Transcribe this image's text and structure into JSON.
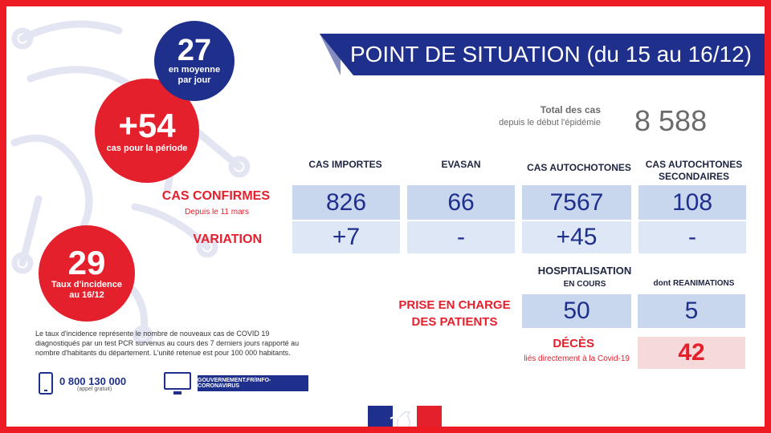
{
  "title": "POINT DE SITUATION (du 15 au 16/12)",
  "bubbles": {
    "average": {
      "value": "27",
      "label_line1": "en moyenne",
      "label_line2": "par jour"
    },
    "period": {
      "value": "+54",
      "label": "cas pour la période"
    },
    "incidence": {
      "value": "29",
      "label_line1": "Taux d'incidence",
      "label_line2": "au 16/12"
    }
  },
  "total": {
    "label": "Total des cas",
    "sublabel": "depuis le début  l'épidémie",
    "value": "8 588"
  },
  "columns": {
    "importes": "CAS IMPORTES",
    "evasan": "EVASAN",
    "autochtones": "CAS AUTOCHOTONES",
    "secondaires_line1": "CAS AUTOCHTONES",
    "secondaires_line2": "SECONDAIRES"
  },
  "rows": {
    "confirmes_label": "CAS CONFIRMES",
    "confirmes_sublabel": "Depuis le 11 mars",
    "variation_label": "VARIATION"
  },
  "confirmes": {
    "importes": "826",
    "evasan": "66",
    "autochtones": "7567",
    "secondaires": "108"
  },
  "variation": {
    "importes": "+7",
    "evasan": "-",
    "autochtones": "+45",
    "secondaires": "-"
  },
  "hospital": {
    "head_line1": "HOSPITALISATION",
    "head_line2": "EN COURS",
    "reanimations_head": "dont REANIMATIONS",
    "label_line1": "PRISE EN CHARGE",
    "label_line2": "DES PATIENTS",
    "en_cours": "50",
    "reanimations": "5"
  },
  "deces": {
    "label": "DÉCÈS",
    "sublabel": "liés directement à la Covid-19",
    "value": "42"
  },
  "incidence_note": "Le taux d'incidence représente le nombre de nouveaux cas de COVID 19 diagnostiqués par un test PCR survenus au cours des 7 derniers jours rapporté au nombre d'habitants du département. L'unité retenue est pour 100 000 habitants.",
  "footer": {
    "phone": "0 800 130 000",
    "phone_note": "(appel gratuit)",
    "website": "GOUVERNEMENT.FR/INFO-CORONAVIRUS"
  },
  "colors": {
    "navy": "#1e2f8c",
    "red": "#e4202d",
    "cell_blue": "#c8d6ee",
    "cell_pink": "#f6d9da"
  },
  "icons": [
    "virus-outline-icon",
    "phone-icon",
    "monitor-icon",
    "french-flag-icon",
    "marianne-icon"
  ]
}
